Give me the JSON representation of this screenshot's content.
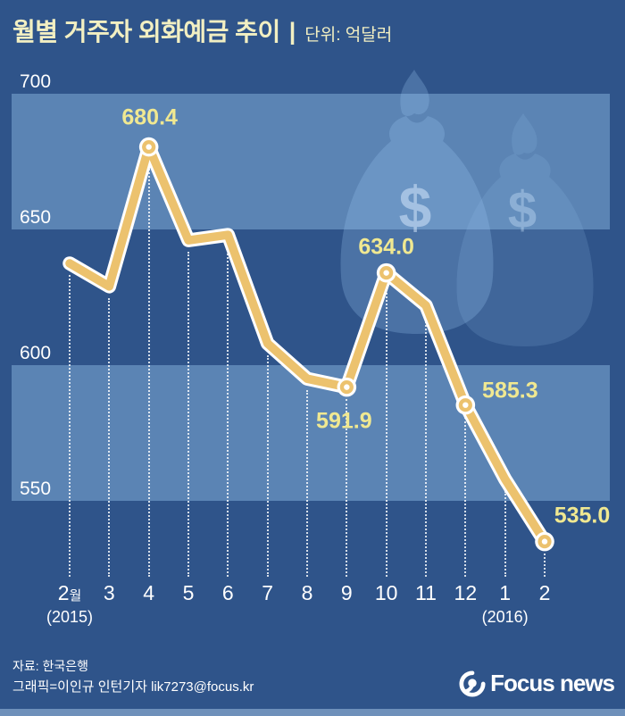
{
  "header": {
    "title": "월별 거주자 외화예금 추이",
    "divider": "|",
    "unit": "단위: 억달러"
  },
  "chart_data": {
    "type": "line",
    "title": "월별 거주자 외화예금 추이",
    "unit": "억달러",
    "x_labels": [
      "2월",
      "3",
      "4",
      "5",
      "6",
      "7",
      "8",
      "9",
      "10",
      "11",
      "12",
      "1",
      "2"
    ],
    "x_sub_labels": [
      {
        "index": 0,
        "text": "(2015)"
      },
      {
        "index": 11,
        "text": "(2016)"
      }
    ],
    "values": [
      637.5,
      629,
      680.4,
      646,
      648,
      608,
      595,
      591.9,
      634.0,
      622,
      585.3,
      558,
      535.0
    ],
    "point_labels": [
      {
        "index": 2,
        "text": "680.4"
      },
      {
        "index": 7,
        "text": "591.9"
      },
      {
        "index": 8,
        "text": "634.0"
      },
      {
        "index": 10,
        "text": "585.3"
      },
      {
        "index": 12,
        "text": "535.0"
      }
    ],
    "yticks": [
      700,
      650,
      600,
      550
    ],
    "ylim": [
      510,
      700
    ],
    "grid": "alternating horizontal bands, dotted vertical drop lines",
    "legend": false,
    "colors": {
      "background": "#2F548A",
      "band": "#5B84B4",
      "line": "#ECC26E",
      "line_outline": "#FFFFFF",
      "marker_center": "#FFFFFF",
      "value_label": "#F0E891",
      "axis_text": "#FFFFFF",
      "title_text": "#F2EFC2",
      "bottom_strip": "#6E90BA"
    }
  },
  "decoration": {
    "money_bag_count": 2,
    "currency_symbol": "$"
  },
  "footer": {
    "source": "자료: 한국은행",
    "credit": "그래픽=이인규 인턴기자 lik7273@focus.kr",
    "logo_text": "Focus news"
  }
}
